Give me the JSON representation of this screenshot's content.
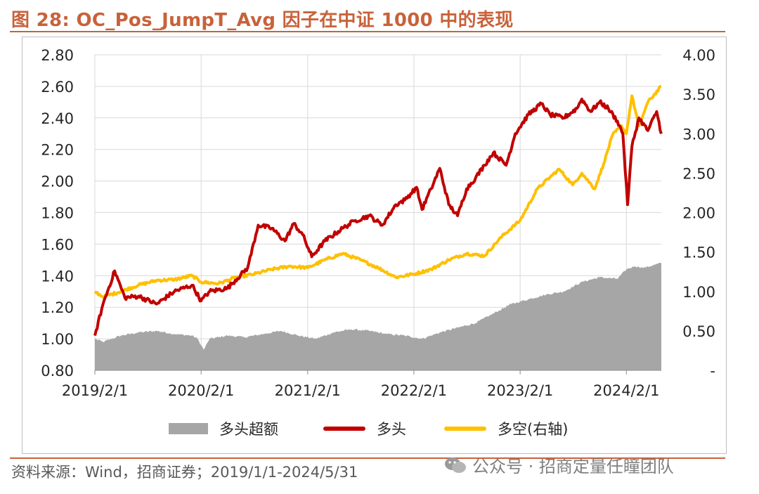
{
  "figure": {
    "title": "图 28:  OC_Pos_JumpT_Avg 因子在中证 1000 中的表现",
    "source": "资料来源：Wind，招商证券；2019/1/1-2024/5/31",
    "watermark": "公众号 · 招商定量任瞳团队"
  },
  "colors": {
    "accent": "#c8623a",
    "excess_area": "#a6a6a6",
    "long_line": "#c00000",
    "long_short_line": "#ffc000"
  },
  "chart_data": {
    "type": "line",
    "x_ticks": [
      "2019/2/1",
      "2020/2/1",
      "2021/2/1",
      "2022/2/1",
      "2023/2/1",
      "2024/2/1"
    ],
    "x_range": [
      "2019/2/1",
      "2024/5/31"
    ],
    "y_left": {
      "min": 0.8,
      "max": 2.8,
      "ticks": [
        "0.80",
        "1.00",
        "1.20",
        "1.40",
        "1.60",
        "1.80",
        "2.00",
        "2.20",
        "2.40",
        "2.60",
        "2.80"
      ]
    },
    "y_right": {
      "min": 0,
      "max": 4,
      "ticks": [
        "-",
        "0.50",
        "1.00",
        "1.50",
        "2.00",
        "2.50",
        "3.00",
        "3.50",
        "4.00"
      ]
    },
    "grid": true,
    "legend_position": "bottom",
    "series": [
      {
        "name": "多头超额",
        "type": "area",
        "axis": "left",
        "points": [
          [
            "2019/2/1",
            1.0
          ],
          [
            "2019/3/1",
            0.98
          ],
          [
            "2019/5/1",
            1.02
          ],
          [
            "2019/7/1",
            1.04
          ],
          [
            "2019/9/1",
            1.05
          ],
          [
            "2019/11/1",
            1.03
          ],
          [
            "2020/1/1",
            1.02
          ],
          [
            "2020/1/20",
            1.0
          ],
          [
            "2020/2/10",
            0.93
          ],
          [
            "2020/3/1",
            1.0
          ],
          [
            "2020/5/1",
            1.02
          ],
          [
            "2020/7/1",
            1.01
          ],
          [
            "2020/9/1",
            1.03
          ],
          [
            "2020/11/1",
            1.05
          ],
          [
            "2021/1/1",
            1.02
          ],
          [
            "2021/3/1",
            1.0
          ],
          [
            "2021/5/1",
            1.04
          ],
          [
            "2021/7/1",
            1.06
          ],
          [
            "2021/9/1",
            1.05
          ],
          [
            "2021/11/1",
            1.03
          ],
          [
            "2022/1/1",
            1.02
          ],
          [
            "2022/3/1",
            1.0
          ],
          [
            "2022/5/1",
            1.04
          ],
          [
            "2022/7/1",
            1.07
          ],
          [
            "2022/9/1",
            1.1
          ],
          [
            "2022/11/1",
            1.16
          ],
          [
            "2023/1/1",
            1.22
          ],
          [
            "2023/3/1",
            1.25
          ],
          [
            "2023/5/1",
            1.28
          ],
          [
            "2023/7/1",
            1.3
          ],
          [
            "2023/9/1",
            1.36
          ],
          [
            "2023/11/1",
            1.39
          ],
          [
            "2024/1/1",
            1.38
          ],
          [
            "2024/2/1",
            1.44
          ],
          [
            "2024/3/1",
            1.46
          ],
          [
            "2024/4/1",
            1.45
          ],
          [
            "2024/5/31",
            1.48
          ]
        ]
      },
      {
        "name": "多头",
        "type": "line",
        "axis": "left",
        "points": [
          [
            "2019/2/1",
            1.02
          ],
          [
            "2019/3/1",
            1.22
          ],
          [
            "2019/4/10",
            1.43
          ],
          [
            "2019/5/15",
            1.26
          ],
          [
            "2019/7/1",
            1.27
          ],
          [
            "2019/9/1",
            1.22
          ],
          [
            "2019/11/1",
            1.3
          ],
          [
            "2020/1/1",
            1.34
          ],
          [
            "2020/2/1",
            1.24
          ],
          [
            "2020/3/1",
            1.3
          ],
          [
            "2020/5/1",
            1.32
          ],
          [
            "2020/7/10",
            1.45
          ],
          [
            "2020/8/15",
            1.72
          ],
          [
            "2020/10/1",
            1.7
          ],
          [
            "2020/11/15",
            1.62
          ],
          [
            "2020/12/15",
            1.73
          ],
          [
            "2021/1/15",
            1.66
          ],
          [
            "2021/2/15",
            1.52
          ],
          [
            "2021/4/1",
            1.62
          ],
          [
            "2021/6/1",
            1.7
          ],
          [
            "2021/7/15",
            1.75
          ],
          [
            "2021/9/1",
            1.78
          ],
          [
            "2021/10/15",
            1.72
          ],
          [
            "2021/12/1",
            1.85
          ],
          [
            "2022/1/1",
            1.88
          ],
          [
            "2022/2/10",
            1.96
          ],
          [
            "2022/3/1",
            1.82
          ],
          [
            "2022/4/1",
            1.95
          ],
          [
            "2022/5/1",
            2.08
          ],
          [
            "2022/6/1",
            1.85
          ],
          [
            "2022/7/1",
            1.78
          ],
          [
            "2022/8/1",
            1.95
          ],
          [
            "2022/9/1",
            2.02
          ],
          [
            "2022/10/1",
            2.1
          ],
          [
            "2022/11/1",
            2.18
          ],
          [
            "2022/12/15",
            2.1
          ],
          [
            "2023/1/15",
            2.3
          ],
          [
            "2023/3/1",
            2.42
          ],
          [
            "2023/4/15",
            2.49
          ],
          [
            "2023/5/15",
            2.42
          ],
          [
            "2023/7/1",
            2.4
          ],
          [
            "2023/8/15",
            2.46
          ],
          [
            "2023/9/1",
            2.52
          ],
          [
            "2023/10/1",
            2.44
          ],
          [
            "2023/11/1",
            2.5
          ],
          [
            "2023/12/1",
            2.46
          ],
          [
            "2024/1/1",
            2.38
          ],
          [
            "2024/1/20",
            2.3
          ],
          [
            "2024/2/5",
            1.85
          ],
          [
            "2024/2/20",
            2.22
          ],
          [
            "2024/3/15",
            2.4
          ],
          [
            "2024/4/15",
            2.32
          ],
          [
            "2024/5/15",
            2.44
          ],
          [
            "2024/5/31",
            2.3
          ]
        ]
      },
      {
        "name": "多空(右轴)",
        "type": "line",
        "axis": "right",
        "points": [
          [
            "2019/2/1",
            1.0
          ],
          [
            "2019/3/1",
            0.93
          ],
          [
            "2019/5/1",
            1.0
          ],
          [
            "2019/7/1",
            1.08
          ],
          [
            "2019/9/1",
            1.14
          ],
          [
            "2019/11/1",
            1.15
          ],
          [
            "2020/1/1",
            1.2
          ],
          [
            "2020/2/1",
            1.12
          ],
          [
            "2020/4/1",
            1.1
          ],
          [
            "2020/6/1",
            1.18
          ],
          [
            "2020/8/1",
            1.22
          ],
          [
            "2020/10/1",
            1.28
          ],
          [
            "2020/12/1",
            1.32
          ],
          [
            "2021/2/1",
            1.3
          ],
          [
            "2021/4/1",
            1.4
          ],
          [
            "2021/6/1",
            1.48
          ],
          [
            "2021/8/1",
            1.4
          ],
          [
            "2021/10/1",
            1.3
          ],
          [
            "2021/12/1",
            1.18
          ],
          [
            "2022/2/1",
            1.22
          ],
          [
            "2022/4/1",
            1.28
          ],
          [
            "2022/6/1",
            1.4
          ],
          [
            "2022/8/1",
            1.48
          ],
          [
            "2022/10/1",
            1.45
          ],
          [
            "2022/12/1",
            1.7
          ],
          [
            "2023/2/1",
            1.9
          ],
          [
            "2023/4/1",
            2.3
          ],
          [
            "2023/5/15",
            2.45
          ],
          [
            "2023/6/15",
            2.55
          ],
          [
            "2023/8/1",
            2.35
          ],
          [
            "2023/9/1",
            2.5
          ],
          [
            "2023/10/15",
            2.3
          ],
          [
            "2023/11/15",
            2.62
          ],
          [
            "2023/12/15",
            2.98
          ],
          [
            "2024/1/15",
            3.1
          ],
          [
            "2024/2/1",
            3.0
          ],
          [
            "2024/2/20",
            3.48
          ],
          [
            "2024/3/15",
            3.1
          ],
          [
            "2024/4/15",
            3.4
          ],
          [
            "2024/5/31",
            3.6
          ]
        ]
      }
    ]
  }
}
